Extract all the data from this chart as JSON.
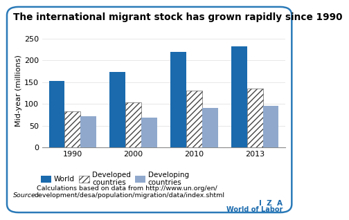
{
  "title": "The international migrant stock has grown rapidly since 1990",
  "ylabel": "Mid-year (millions)",
  "source_italic": "Source:",
  "source_rest": " Calculations based on data from http://www.un.org/en/\ndevelopment/desa/population/migration/data/index.shtml",
  "iza_line1": "I  Z  A",
  "iza_line2": "World of Labor",
  "years": [
    "1990",
    "2000",
    "2010",
    "2013"
  ],
  "world": [
    153,
    173,
    220,
    232
  ],
  "developed": [
    82,
    104,
    130,
    136
  ],
  "developing": [
    71,
    69,
    90,
    96
  ],
  "color_world": "#1a6aad",
  "color_developed_edge": "#444444",
  "color_developing": "#8fa8cc",
  "ylim": [
    0,
    260
  ],
  "yticks": [
    0,
    50,
    100,
    150,
    200,
    250
  ],
  "bar_width": 0.26,
  "title_fontsize": 9.8,
  "tick_fontsize": 8,
  "ylabel_fontsize": 8,
  "legend_fontsize": 7.5,
  "source_fontsize": 6.8,
  "background_color": "#ffffff",
  "border_color": "#2a7ab8"
}
